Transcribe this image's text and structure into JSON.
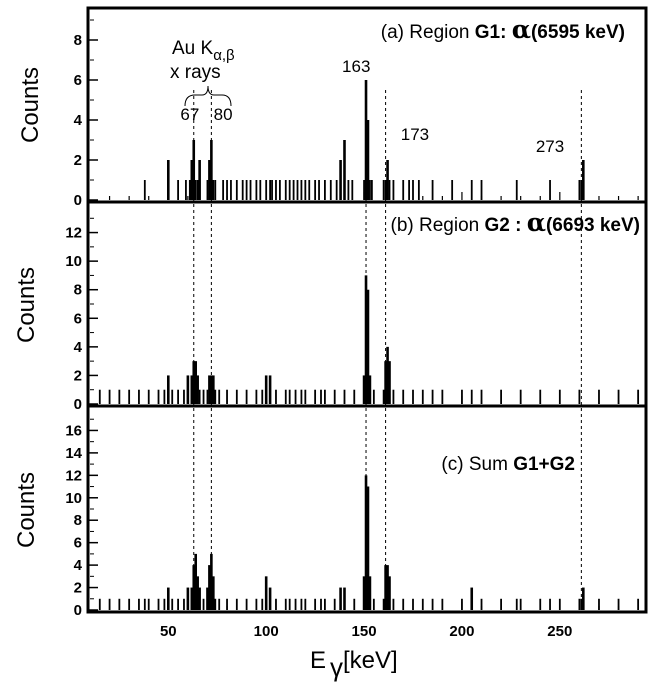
{
  "chart_data": [
    {
      "type": "bar",
      "panel": "a",
      "title_plain": "(a) Region ",
      "title_bold": "G1: ",
      "title_alpha": "α",
      "title_energy": "(6595 keV)",
      "ylabel": "Counts",
      "ylim": [
        0,
        9.5
      ],
      "yticks": [
        0,
        2,
        4,
        6,
        8
      ],
      "xlim": [
        10,
        293
      ],
      "peak_labels": [
        {
          "text": "67",
          "x": 61,
          "y": 4.0
        },
        {
          "text": "80",
          "x": 78,
          "y": 4.0
        },
        {
          "text": "163",
          "x": 146,
          "y": 6.4
        },
        {
          "text": "173",
          "x": 176,
          "y": 3.0
        },
        {
          "text": "273",
          "x": 245,
          "y": 2.4
        }
      ],
      "xray_label_main": "Au K",
      "xray_label_sub": "α,β",
      "xray_label_line2": "x rays",
      "x": [
        38,
        50,
        55,
        59,
        61,
        62,
        63,
        64,
        65,
        66,
        70,
        71,
        72,
        73,
        74,
        78,
        80,
        82,
        85,
        88,
        90,
        92,
        95,
        97,
        100,
        102,
        103,
        105,
        107,
        110,
        112,
        114,
        116,
        118,
        120,
        122,
        125,
        127,
        130,
        133,
        136,
        138,
        140,
        142,
        144,
        150,
        151,
        152,
        153,
        154,
        160,
        161,
        162,
        163,
        165,
        170,
        173,
        175,
        178,
        185,
        195,
        205,
        210,
        228,
        245,
        260,
        261,
        262
      ],
      "values": [
        1,
        2,
        1,
        1,
        1,
        2,
        3,
        1,
        1,
        2,
        1,
        2,
        3,
        1,
        1,
        1,
        1,
        1,
        1,
        1,
        1,
        1,
        1,
        1,
        1,
        1,
        1,
        1,
        1,
        1,
        1,
        1,
        1,
        1,
        1,
        1,
        1,
        1,
        1,
        1,
        1,
        2,
        3,
        1,
        1,
        1,
        6,
        4,
        1,
        1,
        1,
        1,
        2,
        1,
        1,
        1,
        1,
        1,
        1,
        1,
        1,
        1,
        1,
        1,
        1,
        1,
        1,
        2
      ]
    },
    {
      "type": "bar",
      "panel": "b",
      "title_plain": "(b) Region ",
      "title_bold": "G2 : ",
      "title_alpha": "α",
      "title_energy": "(6693 keV)",
      "ylabel": "Counts",
      "ylim": [
        0,
        14
      ],
      "yticks": [
        0,
        2,
        4,
        6,
        8,
        10,
        12
      ],
      "xlim": [
        10,
        293
      ],
      "x": [
        15,
        20,
        25,
        30,
        35,
        40,
        45,
        48,
        50,
        52,
        55,
        58,
        60,
        62,
        63,
        64,
        65,
        66,
        68,
        70,
        71,
        72,
        73,
        74,
        76,
        80,
        85,
        90,
        95,
        98,
        100,
        102,
        105,
        110,
        112,
        115,
        118,
        120,
        125,
        128,
        130,
        135,
        140,
        145,
        150,
        151,
        152,
        153,
        155,
        160,
        161,
        162,
        163,
        165,
        170,
        175,
        180,
        185,
        190,
        200,
        205,
        210,
        220,
        230,
        240,
        250,
        260,
        270,
        280,
        290
      ],
      "values": [
        1,
        1,
        1,
        1,
        1,
        1,
        1,
        1,
        2,
        1,
        1,
        1,
        2,
        2,
        3,
        3,
        2,
        1,
        1,
        1,
        2,
        2,
        2,
        1,
        1,
        1,
        1,
        1,
        1,
        1,
        2,
        2,
        1,
        1,
        1,
        1,
        1,
        1,
        1,
        1,
        1,
        1,
        1,
        1,
        2,
        9,
        8,
        2,
        1,
        1,
        3,
        4,
        3,
        1,
        1,
        1,
        1,
        1,
        1,
        1,
        1,
        1,
        1,
        1,
        1,
        1,
        1,
        1,
        1,
        1
      ]
    },
    {
      "type": "bar",
      "panel": "c",
      "title_plain": "(c) Sum ",
      "title_bold": "G1+G2",
      "ylabel": "Counts",
      "ylim": [
        0,
        18
      ],
      "yticks": [
        0,
        2,
        4,
        6,
        8,
        10,
        12,
        14,
        16
      ],
      "xlim": [
        10,
        293
      ],
      "xticks": [
        50,
        100,
        150,
        200,
        250
      ],
      "xlabel_main": "E",
      "xlabel_sub": "γ",
      "xlabel_rest": "[keV]",
      "x": [
        15,
        20,
        25,
        30,
        35,
        38,
        40,
        45,
        48,
        50,
        52,
        55,
        58,
        60,
        62,
        63,
        64,
        65,
        66,
        68,
        70,
        71,
        72,
        73,
        74,
        76,
        80,
        85,
        90,
        95,
        98,
        100,
        102,
        105,
        110,
        112,
        115,
        118,
        120,
        125,
        128,
        130,
        135,
        138,
        140,
        145,
        150,
        151,
        152,
        153,
        155,
        160,
        161,
        162,
        163,
        165,
        170,
        175,
        180,
        185,
        190,
        200,
        205,
        210,
        220,
        228,
        230,
        240,
        245,
        250,
        260,
        261,
        262,
        270,
        280,
        290
      ],
      "values": [
        1,
        1,
        1,
        1,
        1,
        1,
        1,
        1,
        1,
        2,
        1,
        1,
        1,
        2,
        2,
        4,
        5,
        3,
        2,
        1,
        2,
        4,
        5,
        3,
        1,
        1,
        1,
        1,
        1,
        1,
        1,
        3,
        2,
        1,
        1,
        1,
        1,
        1,
        1,
        1,
        1,
        1,
        1,
        2,
        2,
        1,
        3,
        12,
        11,
        3,
        1,
        1,
        4,
        4,
        3,
        1,
        1,
        1,
        1,
        1,
        1,
        1,
        2,
        1,
        1,
        1,
        1,
        1,
        1,
        1,
        1,
        1,
        2,
        1,
        1,
        1
      ]
    }
  ],
  "reference_lines_x": [
    63,
    72,
    151,
    161,
    261
  ]
}
